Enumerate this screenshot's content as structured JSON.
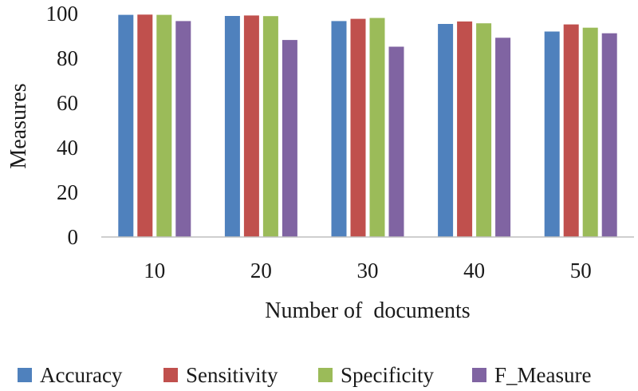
{
  "chart_data": {
    "type": "bar",
    "title": "",
    "xlabel": "Number of  documents",
    "ylabel": "Measures",
    "categories": [
      "10",
      "20",
      "30",
      "40",
      "50"
    ],
    "ylim": [
      0,
      100
    ],
    "yticks": [
      "0",
      "20",
      "40",
      "60",
      "80",
      "100"
    ],
    "grid": false,
    "legend_position": "bottom",
    "series": [
      {
        "name": "Accuracy",
        "color": "#4f81bd",
        "values": [
          99.8,
          99.3,
          97,
          95.7,
          92.3
        ]
      },
      {
        "name": "Sensitivity",
        "color": "#c0504d",
        "values": [
          99.9,
          99.5,
          98,
          96.8,
          95.5
        ]
      },
      {
        "name": "Specificity",
        "color": "#9bbb59",
        "values": [
          99.8,
          99.2,
          98.4,
          96,
          94
        ]
      },
      {
        "name": "F_Measure",
        "color": "#8064a2",
        "values": [
          97,
          88.5,
          85.5,
          89.5,
          91.5
        ]
      }
    ]
  }
}
